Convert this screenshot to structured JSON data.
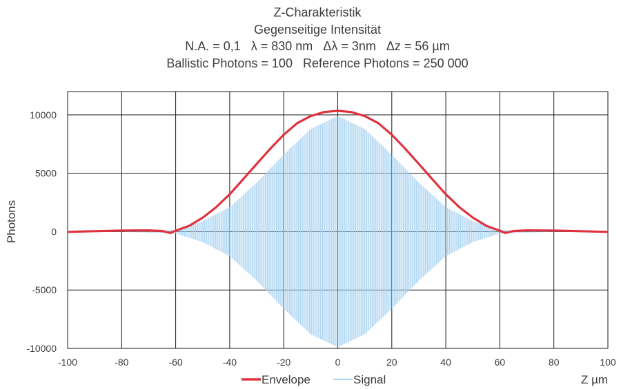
{
  "chart_data": {
    "type": "line",
    "title": "Z-Charakteristik",
    "subtitle_lines": [
      "Gegenseitige Intensität",
      "N.A. = 0,1   λ = 830 nm   Δλ = 3nm   Δz = 56 µm",
      "Ballistic Photons = 100   Reference Photons = 250 000"
    ],
    "xlabel": "Z µm",
    "ylabel": "Photons",
    "xlim": [
      -100,
      100
    ],
    "ylim": [
      -10000,
      12000
    ],
    "x_ticks": [
      "-100",
      "-80",
      "-60",
      "-40",
      "-20",
      "0",
      "20",
      "40",
      "60",
      "80",
      "100"
    ],
    "y_ticks": [
      "10000",
      "5000",
      "0",
      "-5000",
      "-10000"
    ],
    "grid": true,
    "legend_position": "bottom",
    "series": [
      {
        "name": "Envelope",
        "color": "#e0323e",
        "x": [
          -100,
          -90,
          -80,
          -70,
          -65,
          -62,
          -60,
          -55,
          -50,
          -45,
          -40,
          -35,
          -30,
          -25,
          -20,
          -15,
          -10,
          -5,
          0,
          5,
          10,
          15,
          20,
          25,
          30,
          35,
          40,
          45,
          50,
          55,
          60,
          62,
          65,
          70,
          80,
          90,
          100
        ],
        "y": [
          -20,
          40,
          100,
          110,
          50,
          -120,
          80,
          500,
          1200,
          2100,
          3200,
          4500,
          5800,
          7100,
          8300,
          9300,
          9900,
          10250,
          10350,
          10250,
          9900,
          9300,
          8300,
          7100,
          5800,
          4500,
          3200,
          2100,
          1200,
          500,
          80,
          -120,
          50,
          110,
          100,
          40,
          -20
        ]
      },
      {
        "name": "Signal",
        "color": "#a9d3f2",
        "x": [
          -100,
          -80,
          -60,
          -50,
          -40,
          -30,
          -20,
          -10,
          0,
          10,
          20,
          30,
          40,
          50,
          60,
          80,
          100
        ],
        "y_amplitude": [
          10,
          20,
          150,
          900,
          2100,
          4200,
          6600,
          8800,
          9900,
          8800,
          6600,
          4200,
          2100,
          900,
          150,
          20,
          10
        ]
      }
    ]
  }
}
